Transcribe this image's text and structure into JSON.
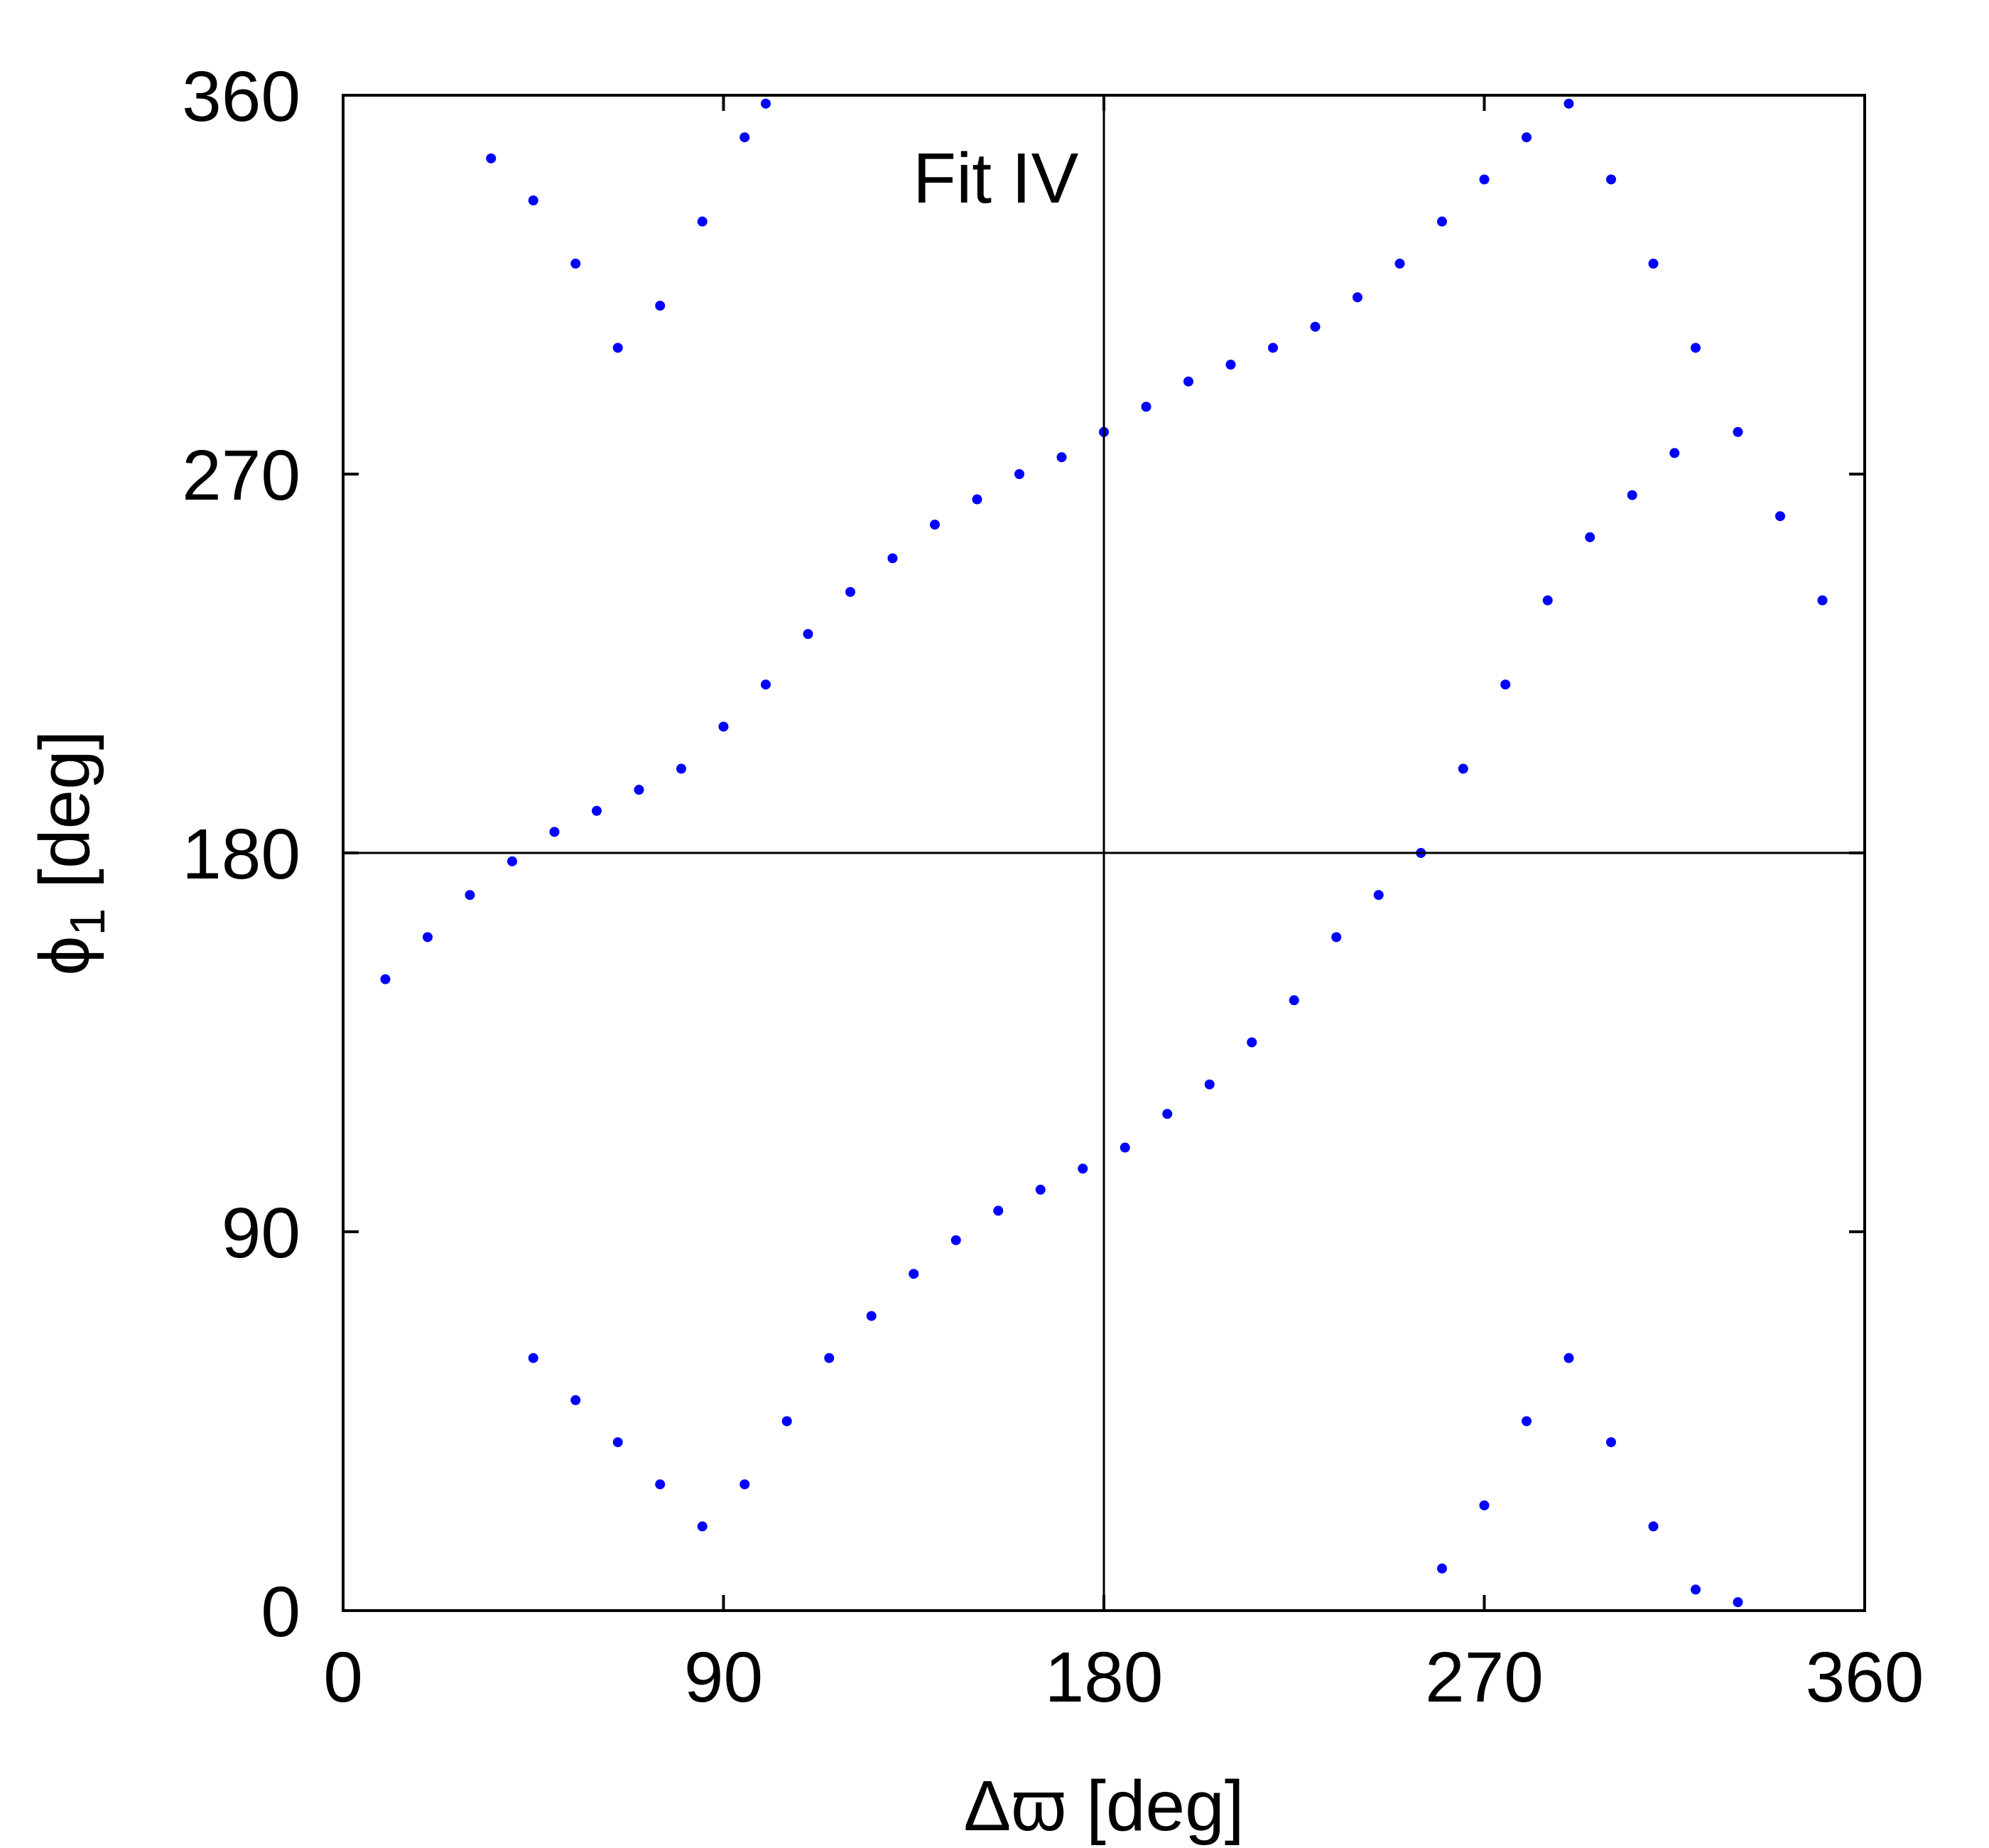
{
  "chart_data": {
    "type": "scatter",
    "title": "",
    "annotation": "Fit IV",
    "xlabel": "Δϖ [deg]",
    "ylabel_main": "ϕ",
    "ylabel_sub": "1",
    "ylabel_unit": " [deg]",
    "xlim": [
      0,
      360
    ],
    "ylim": [
      0,
      360
    ],
    "xticks": [
      0,
      90,
      180,
      270,
      360
    ],
    "yticks": [
      0,
      90,
      180,
      270,
      360
    ],
    "xtick_labels": [
      "0",
      "90",
      "180",
      "270",
      "360"
    ],
    "ytick_labels": [
      "0",
      "90",
      "180",
      "270",
      "360"
    ],
    "reference_lines": {
      "x": 180,
      "y": 180
    },
    "grid": false,
    "legend": "none",
    "point_color": "#0000ff",
    "series": [
      {
        "x": [
          10,
          20,
          30,
          40,
          50,
          60,
          70,
          80,
          90,
          100,
          110,
          120,
          130,
          140,
          150,
          160,
          170,
          180,
          190,
          200,
          210,
          220,
          230,
          240,
          250,
          260,
          270,
          280,
          290,
          300,
          310,
          320,
          330,
          340,
          350,
          45,
          55,
          65,
          75,
          85,
          95,
          105,
          115,
          125,
          135,
          145,
          155,
          165,
          175,
          185,
          195,
          205,
          215,
          225,
          235,
          245,
          255,
          265,
          275,
          285,
          295,
          305,
          315,
          35,
          45,
          55,
          65,
          75,
          85,
          95,
          100,
          260,
          270,
          280,
          290,
          300,
          310,
          320,
          330
        ],
        "y": [
          150,
          160,
          170,
          178,
          185,
          190,
          195,
          200,
          210,
          220,
          232,
          242,
          250,
          258,
          264,
          270,
          274,
          280,
          286,
          292,
          296,
          300,
          305,
          312,
          320,
          330,
          340,
          350,
          358,
          340,
          320,
          300,
          280,
          260,
          240,
          60,
          50,
          40,
          30,
          20,
          30,
          45,
          60,
          70,
          80,
          88,
          95,
          100,
          105,
          110,
          118,
          125,
          135,
          145,
          160,
          170,
          180,
          200,
          220,
          240,
          255,
          265,
          275,
          345,
          335,
          320,
          300,
          310,
          330,
          350,
          358,
          10,
          25,
          45,
          60,
          40,
          20,
          5,
          2
        ]
      }
    ]
  }
}
